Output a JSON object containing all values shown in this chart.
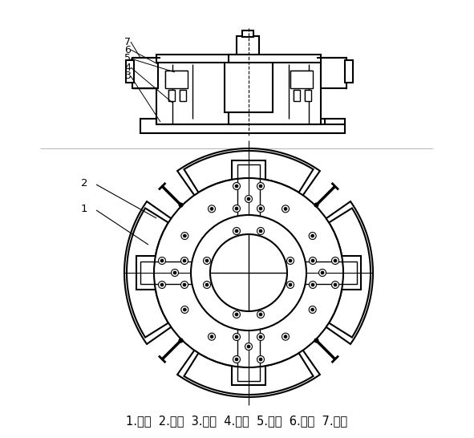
{
  "caption": "1.托盘  2.手柄  3.底座  4.转环  5.销钉  6.滑块  7.抱爪",
  "bg_color": "#ffffff",
  "line_color": "#000000",
  "fig_width": 5.91,
  "fig_height": 5.46,
  "caption_fontsize": 10.5
}
